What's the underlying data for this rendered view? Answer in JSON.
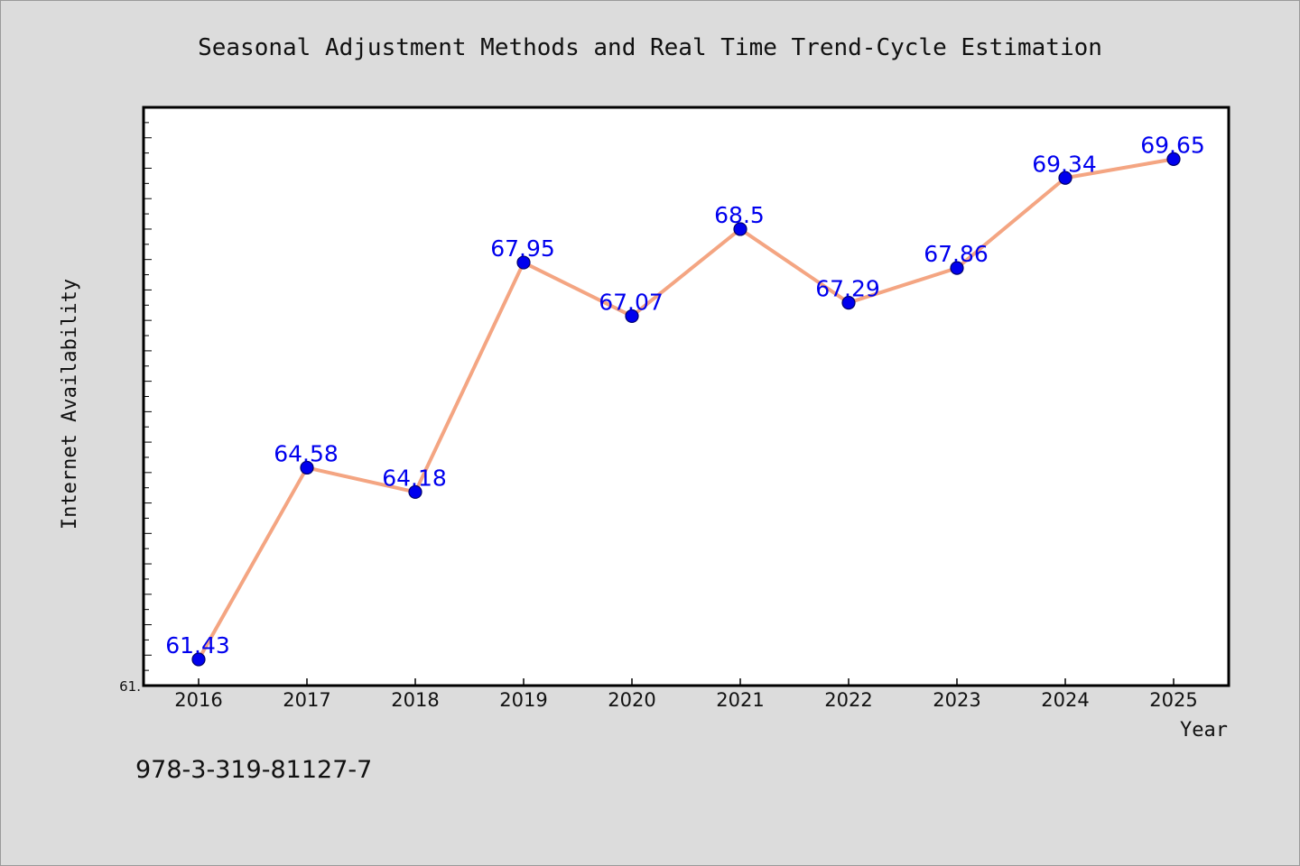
{
  "chart_data": {
    "type": "line",
    "title": "Seasonal Adjustment Methods and Real Time Trend-Cycle Estimation",
    "xlabel": "Year",
    "ylabel": "Internet Availability",
    "categories": [
      "2016",
      "2017",
      "2018",
      "2019",
      "2020",
      "2021",
      "2022",
      "2023",
      "2024",
      "2025"
    ],
    "series": [
      {
        "values": [
          61.43,
          64.58,
          64.18,
          67.95,
          67.07,
          68.5,
          67.29,
          67.86,
          69.34,
          69.65
        ],
        "labels": [
          "61.43",
          "64.58",
          "64.18",
          "67.95",
          "67.07",
          "68.5",
          "67.29",
          "67.86",
          "69.34",
          "69.65"
        ]
      }
    ],
    "ylim": [
      61.0,
      70.5
    ],
    "y_min_label": "61.",
    "grid": false,
    "legend": "none",
    "colors": {
      "line": "#f4a582",
      "marker": "#0000ee",
      "data_label": "#0000ee",
      "background": "#dcdcdc",
      "plot_background": "#ffffff"
    }
  },
  "footnote": "978-3-319-81127-7"
}
